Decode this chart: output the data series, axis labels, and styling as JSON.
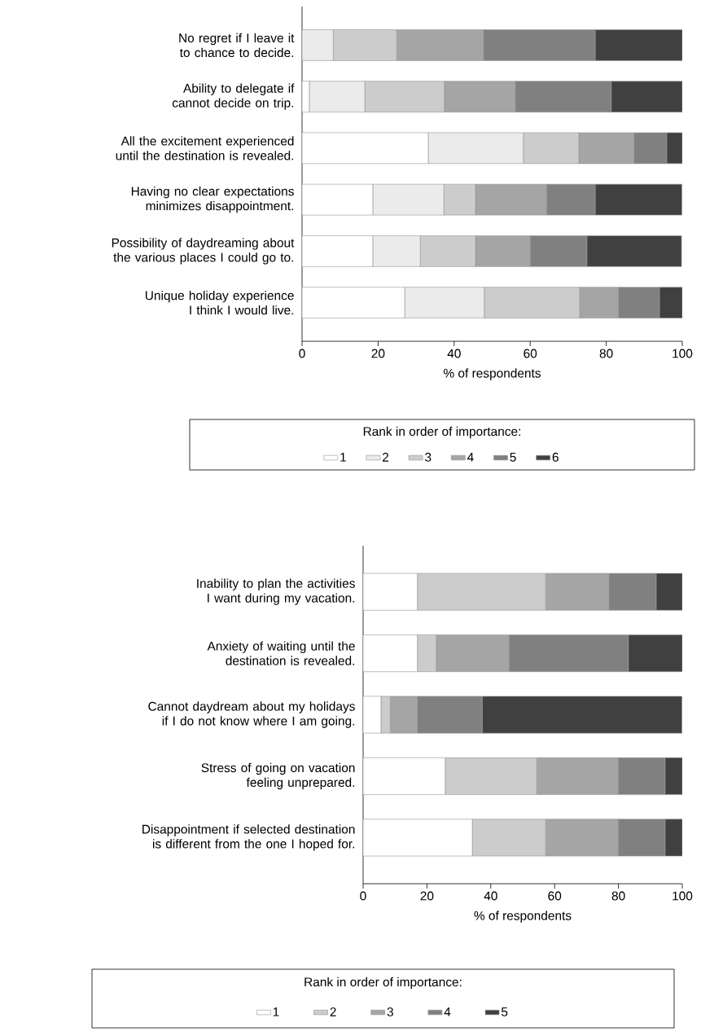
{
  "chart_data": [
    {
      "type": "bar",
      "orientation": "horizontal",
      "stacked": true,
      "categories": [
        "No regret if I leave it to chance to decide.",
        "Ability to delegate if cannot decide on trip.",
        "All the excitement experienced until the destination is revealed.",
        "Having no clear expectations minimizes disappointment.",
        "Possibility of daydreaming about the various places I could go to.",
        "Unique holiday experience I think I would live."
      ],
      "series": [
        {
          "name": "1",
          "color": "#ffffff",
          "values": [
            0,
            1.9,
            33.2,
            18.6,
            18.6,
            27.0
          ]
        },
        {
          "name": "2",
          "color": "#ebebeb",
          "values": [
            8.2,
            14.6,
            25.0,
            18.7,
            12.5,
            20.9
          ]
        },
        {
          "name": "3",
          "color": "#cccccc",
          "values": [
            16.7,
            20.9,
            14.6,
            8.3,
            14.5,
            25.1
          ]
        },
        {
          "name": "4",
          "color": "#a5a5a5",
          "values": [
            22.8,
            18.7,
            14.5,
            18.7,
            14.4,
            10.2
          ]
        },
        {
          "name": "5",
          "color": "#808080",
          "values": [
            29.4,
            25.2,
            8.6,
            12.8,
            14.9,
            10.8
          ]
        },
        {
          "name": "6",
          "color": "#404040",
          "values": [
            22.9,
            18.7,
            4.1,
            22.8,
            24.9,
            6.0
          ]
        }
      ],
      "xlabel": "% of respondents",
      "xlim": [
        0,
        100
      ],
      "xticks": [
        0,
        20,
        40,
        60,
        80,
        100
      ],
      "legend": "bottom",
      "legend_title": "Rank in order of importance:"
    },
    {
      "type": "bar",
      "orientation": "horizontal",
      "stacked": true,
      "categories": [
        "Inability to plan the activities I want during my vacation.",
        "Anxiety of waiting until the destination is revealed.",
        "Cannot daydream about my holidays if I do not know where I am going.",
        "Stress of going on vacation feeling unprepared.",
        "Disappointment if selected destination is different from the one I hoped for."
      ],
      "series": [
        {
          "name": "1",
          "color": "#ffffff",
          "values": [
            17.0,
            17.0,
            5.6,
            25.7,
            34.2
          ]
        },
        {
          "name": "2",
          "color": "#cccccc",
          "values": [
            40.2,
            5.9,
            2.9,
            28.7,
            23.0
          ]
        },
        {
          "name": "3",
          "color": "#a5a5a5",
          "values": [
            19.8,
            22.8,
            8.5,
            25.5,
            22.7
          ]
        },
        {
          "name": "4",
          "color": "#808080",
          "values": [
            14.8,
            37.4,
            20.3,
            14.7,
            14.7
          ]
        },
        {
          "name": "5",
          "color": "#404040",
          "values": [
            8.2,
            16.9,
            62.6,
            5.4,
            5.4
          ]
        }
      ],
      "xlabel": "% of respondents",
      "xlim": [
        0,
        100
      ],
      "xticks": [
        0,
        20,
        40,
        60,
        80,
        100
      ],
      "legend": "bottom",
      "legend_title": "Rank in order of importance:"
    }
  ]
}
